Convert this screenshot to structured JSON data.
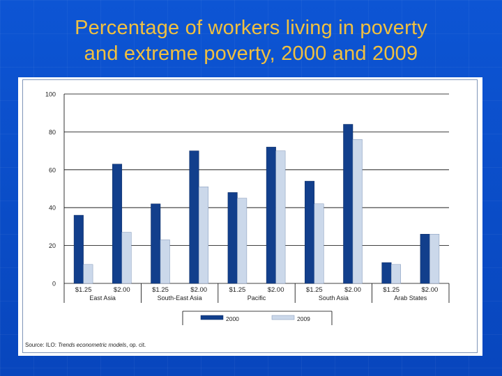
{
  "slide": {
    "title_line1": "Percentage of workers living in poverty",
    "title_line2": "and extreme poverty, 2000 and 2009"
  },
  "source": {
    "prefix": "Source: ILO: ",
    "italic": "Trends econometric models",
    "suffix": ", op. cit."
  },
  "colors": {
    "series_2000": "#123f8c",
    "series_2009": "#cbd8ea",
    "title": "#f0c040",
    "panel_border": "#7f95b8"
  },
  "chart_data": {
    "type": "bar",
    "title": "",
    "xlabel": "",
    "ylabel": "",
    "ylim": [
      0,
      100
    ],
    "yticks": [
      0,
      20,
      40,
      60,
      80,
      100
    ],
    "grid": true,
    "legend_position": "bottom",
    "groups": [
      {
        "name": "East Asia",
        "categories": [
          "$1.25",
          "$2.00"
        ]
      },
      {
        "name": "South-East Asia",
        "categories": [
          "$1.25",
          "$2.00"
        ]
      },
      {
        "name": "Pacific",
        "categories": [
          "$1.25",
          "$2.00"
        ]
      },
      {
        "name": "South Asia",
        "categories": [
          "$1.25",
          "$2.00"
        ]
      },
      {
        "name": "Arab States",
        "categories": [
          "$1.25",
          "$2.00"
        ]
      }
    ],
    "series": [
      {
        "name": "2000",
        "values": [
          36,
          63,
          42,
          70,
          48,
          72,
          54,
          84,
          11,
          26
        ]
      },
      {
        "name": "2009",
        "values": [
          10,
          27,
          23,
          51,
          45,
          70,
          42,
          76,
          10,
          26
        ]
      }
    ]
  }
}
